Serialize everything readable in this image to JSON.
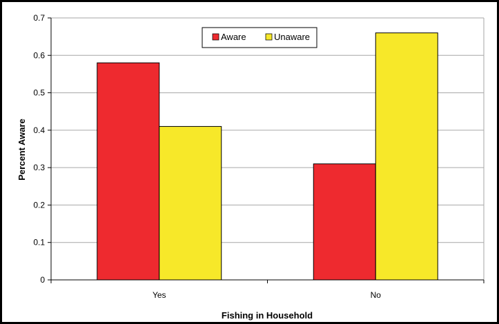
{
  "colors": {
    "aware": "#ee2a2f",
    "unaware": "#f7e829",
    "gridline": "#a6a6a6",
    "frame": "#000000",
    "background": "#ffffff"
  },
  "chart_data": {
    "type": "bar",
    "title": "",
    "xlabel": "Fishing in Household",
    "ylabel": "Percent Aware",
    "categories": [
      "Yes",
      "No"
    ],
    "series": [
      {
        "name": "Aware",
        "values": [
          0.58,
          0.31
        ],
        "color": "#ee2a2f"
      },
      {
        "name": "Unaware",
        "values": [
          0.41,
          0.66
        ],
        "color": "#f7e829"
      }
    ],
    "ylim": [
      0,
      0.7
    ],
    "yticks": [
      "0",
      "0.1",
      "0.2",
      "0.3",
      "0.4",
      "0.5",
      "0.6",
      "0.7"
    ],
    "grid": true,
    "legend": "top-center"
  }
}
